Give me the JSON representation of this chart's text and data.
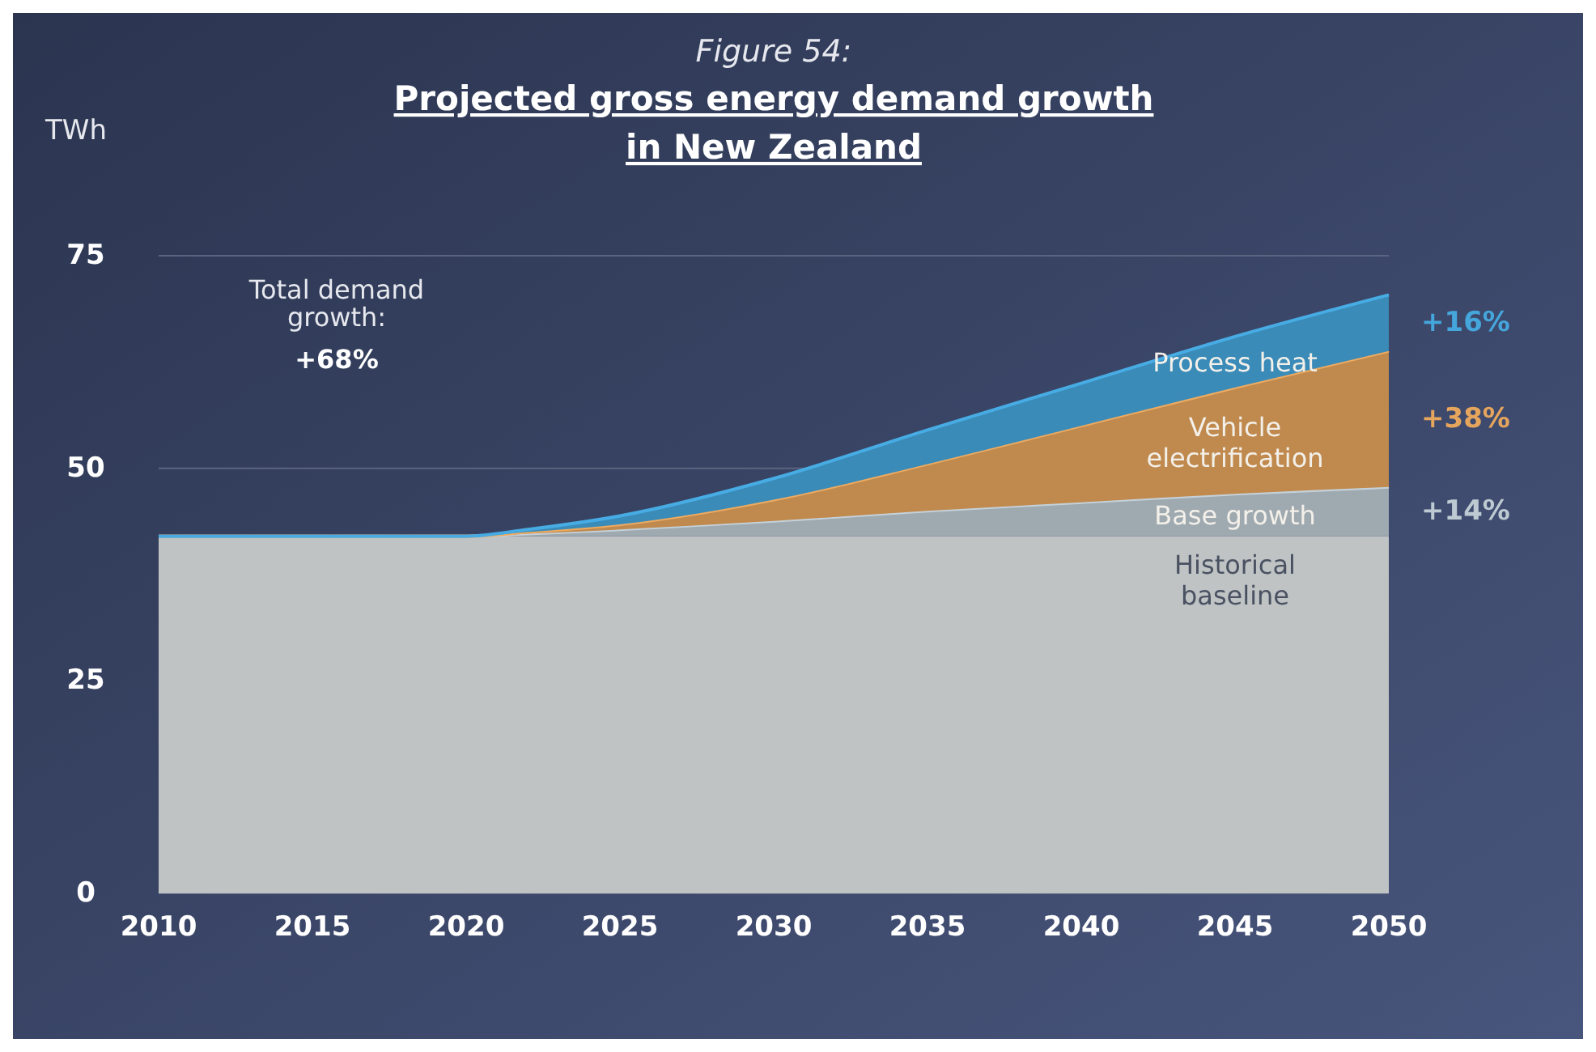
{
  "chart_data": {
    "type": "area",
    "stacked": true,
    "subtitle": "Figure 54:",
    "title": "Projected gross energy demand growth in New Zealand",
    "ylabel": "TWh",
    "x": [
      2010,
      2015,
      2020,
      2022,
      2025,
      2030,
      2035,
      2040,
      2045,
      2050
    ],
    "series": [
      {
        "name": "Historical baseline",
        "color": "#bfc3c4",
        "values": [
          42,
          42,
          42,
          42,
          42,
          42,
          42,
          42,
          42,
          42
        ]
      },
      {
        "name": "Base growth",
        "color": "#9fa9b0",
        "values": [
          0,
          0,
          0,
          0.3,
          0.8,
          1.8,
          3,
          4,
          5,
          5.8
        ]
      },
      {
        "name": "Vehicle electrification",
        "color": "#c08a4e",
        "values": [
          0,
          0,
          0,
          0.2,
          0.6,
          2.5,
          5.5,
          9,
          12.5,
          16
        ]
      },
      {
        "name": "Process heat",
        "color": "#3a8bb8",
        "values": [
          0,
          0,
          0,
          0.3,
          1,
          2.5,
          4,
          5,
          6,
          6.6
        ]
      }
    ],
    "annotations": [
      "Total demand growth:\n+68%",
      "+16%",
      "+38%",
      "+14%"
    ],
    "xlim": [
      2010,
      2050
    ],
    "xticks": [
      2010,
      2015,
      2020,
      2025,
      2030,
      2035,
      2040,
      2045,
      2050
    ],
    "ylim": [
      0,
      75
    ],
    "yticks": [
      0,
      25,
      50,
      75
    ],
    "grid": "y",
    "legend": false
  }
}
